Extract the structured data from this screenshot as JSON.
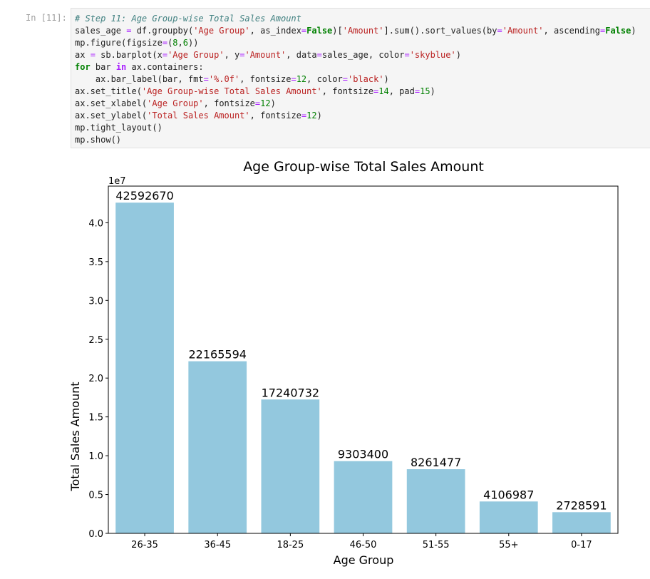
{
  "cell": {
    "prompt": "In [11]:",
    "code_lines": [
      [
        {
          "t": "# Step 11: Age Group-wise Total Sales Amount",
          "c": "comment"
        }
      ],
      [
        {
          "t": "sales_age ",
          "c": ""
        },
        {
          "t": "=",
          "c": "op"
        },
        {
          "t": " df.groupby(",
          "c": ""
        },
        {
          "t": "'Age Group'",
          "c": "str"
        },
        {
          "t": ", as_index",
          "c": ""
        },
        {
          "t": "=",
          "c": "op"
        },
        {
          "t": "False",
          "c": "const"
        },
        {
          "t": ")[",
          "c": ""
        },
        {
          "t": "'Amount'",
          "c": "str"
        },
        {
          "t": "].sum().sort_values(by",
          "c": ""
        },
        {
          "t": "=",
          "c": "op"
        },
        {
          "t": "'Amount'",
          "c": "str"
        },
        {
          "t": ", ascending",
          "c": ""
        },
        {
          "t": "=",
          "c": "op"
        },
        {
          "t": "False",
          "c": "const"
        },
        {
          "t": ")",
          "c": ""
        }
      ],
      [
        {
          "t": "mp.figure(figsize",
          "c": ""
        },
        {
          "t": "=",
          "c": "op"
        },
        {
          "t": "(",
          "c": ""
        },
        {
          "t": "8",
          "c": "num"
        },
        {
          "t": ",",
          "c": ""
        },
        {
          "t": "6",
          "c": "num"
        },
        {
          "t": "))",
          "c": ""
        }
      ],
      [
        {
          "t": "ax ",
          "c": ""
        },
        {
          "t": "=",
          "c": "op"
        },
        {
          "t": " sb.barplot(x",
          "c": ""
        },
        {
          "t": "=",
          "c": "op"
        },
        {
          "t": "'Age Group'",
          "c": "str"
        },
        {
          "t": ", y",
          "c": ""
        },
        {
          "t": "=",
          "c": "op"
        },
        {
          "t": "'Amount'",
          "c": "str"
        },
        {
          "t": ", data",
          "c": ""
        },
        {
          "t": "=",
          "c": "op"
        },
        {
          "t": "sales_age, color",
          "c": ""
        },
        {
          "t": "=",
          "c": "op"
        },
        {
          "t": "'skyblue'",
          "c": "str"
        },
        {
          "t": ")",
          "c": ""
        }
      ],
      [
        {
          "t": "for",
          "c": "kw"
        },
        {
          "t": " bar ",
          "c": ""
        },
        {
          "t": "in",
          "c": "kwin"
        },
        {
          "t": " ax.containers:",
          "c": ""
        }
      ],
      [
        {
          "t": "    ax.bar_label(bar, fmt",
          "c": ""
        },
        {
          "t": "=",
          "c": "op"
        },
        {
          "t": "'%.0f'",
          "c": "str"
        },
        {
          "t": ", fontsize",
          "c": ""
        },
        {
          "t": "=",
          "c": "op"
        },
        {
          "t": "12",
          "c": "num"
        },
        {
          "t": ", color",
          "c": ""
        },
        {
          "t": "=",
          "c": "op"
        },
        {
          "t": "'black'",
          "c": "str"
        },
        {
          "t": ")",
          "c": ""
        }
      ],
      [
        {
          "t": "ax.set_title(",
          "c": ""
        },
        {
          "t": "'Age Group-wise Total Sales Amount'",
          "c": "str"
        },
        {
          "t": ", fontsize",
          "c": ""
        },
        {
          "t": "=",
          "c": "op"
        },
        {
          "t": "14",
          "c": "num"
        },
        {
          "t": ", pad",
          "c": ""
        },
        {
          "t": "=",
          "c": "op"
        },
        {
          "t": "15",
          "c": "num"
        },
        {
          "t": ")",
          "c": ""
        }
      ],
      [
        {
          "t": "ax.set_xlabel(",
          "c": ""
        },
        {
          "t": "'Age Group'",
          "c": "str"
        },
        {
          "t": ", fontsize",
          "c": ""
        },
        {
          "t": "=",
          "c": "op"
        },
        {
          "t": "12",
          "c": "num"
        },
        {
          "t": ")",
          "c": ""
        }
      ],
      [
        {
          "t": "ax.set_ylabel(",
          "c": ""
        },
        {
          "t": "'Total Sales Amount'",
          "c": "str"
        },
        {
          "t": ", fontsize",
          "c": ""
        },
        {
          "t": "=",
          "c": "op"
        },
        {
          "t": "12",
          "c": "num"
        },
        {
          "t": ")",
          "c": ""
        }
      ],
      [
        {
          "t": "mp.tight_layout()",
          "c": ""
        }
      ],
      [
        {
          "t": "mp.show()",
          "c": ""
        }
      ]
    ]
  },
  "chart_data": {
    "type": "bar",
    "title": "Age Group-wise Total Sales Amount",
    "xlabel": "Age Group",
    "ylabel": "Total Sales Amount",
    "offset_label": "1e7",
    "categories": [
      "26-35",
      "36-45",
      "18-25",
      "46-50",
      "51-55",
      "55+",
      "0-17"
    ],
    "values": [
      42592670,
      22165594,
      17240732,
      9303400,
      8261477,
      4106987,
      2728591
    ],
    "data_labels": [
      "42592670",
      "22165594",
      "17240732",
      "9303400",
      "8261477",
      "4106987",
      "2728591"
    ],
    "yticks": [
      0,
      5000000,
      10000000,
      15000000,
      20000000,
      25000000,
      30000000,
      35000000,
      40000000
    ],
    "ytick_labels": [
      "0.0",
      "0.5",
      "1.0",
      "1.5",
      "2.0",
      "2.5",
      "3.0",
      "3.5",
      "4.0"
    ],
    "ylim": [
      0,
      44722303
    ],
    "bar_color": "#93c8de",
    "grid": false,
    "legend": "none"
  }
}
